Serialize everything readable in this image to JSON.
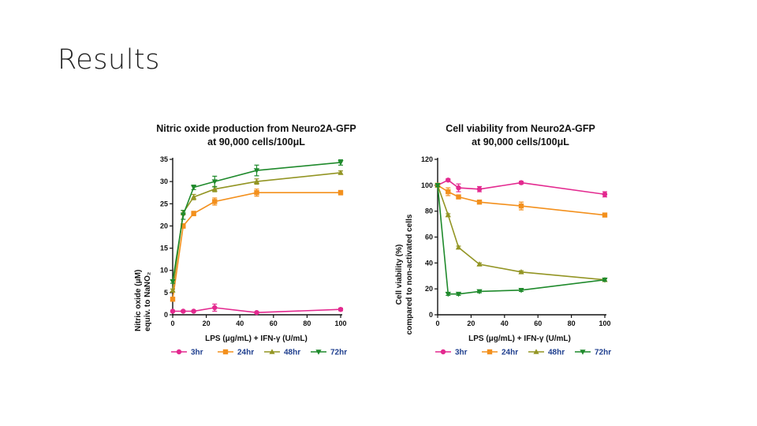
{
  "slide": {
    "title": "Results"
  },
  "colors": {
    "3hr": "#e3298f",
    "24hr": "#f3901d",
    "48hr": "#939524",
    "72hr": "#1f8a2c",
    "axis": "#111111",
    "legend_text": "#1f3f8f"
  },
  "chart_data": [
    {
      "type": "line",
      "title": [
        "Nitric oxide production from Neuro2A-GFP",
        "at 90,000 cells/100μL"
      ],
      "xlabel": "LPS (μg/mL) + IFN-γ (U/mL)",
      "ylabel": [
        "Nitric oxide (μM)",
        "equiv. to NaNO₂"
      ],
      "xlim": [
        0,
        100
      ],
      "ylim": [
        0,
        35
      ],
      "xticks": [
        0,
        20,
        40,
        60,
        80,
        100
      ],
      "yticks": [
        0,
        5,
        10,
        15,
        20,
        25,
        30,
        35
      ],
      "x": [
        0,
        6.25,
        12.5,
        25,
        50,
        100
      ],
      "series": [
        {
          "name": "3hr",
          "marker": "circle",
          "values": [
            0.8,
            0.8,
            0.8,
            1.6,
            0.5,
            1.2
          ],
          "err": [
            0.2,
            0.2,
            0.2,
            0.8,
            0.2,
            0.3
          ]
        },
        {
          "name": "24hr",
          "marker": "square",
          "values": [
            3.5,
            20.0,
            22.8,
            25.5,
            27.5,
            27.5
          ],
          "err": [
            0.3,
            0.5,
            0.5,
            0.8,
            0.8,
            0.5
          ]
        },
        {
          "name": "48hr",
          "marker": "triangle-up",
          "values": [
            5.5,
            23.0,
            26.5,
            28.3,
            30.0,
            32.0
          ],
          "err": [
            0.3,
            0.5,
            0.6,
            0.6,
            0.6,
            0.4
          ]
        },
        {
          "name": "72hr",
          "marker": "triangle-down",
          "values": [
            7.5,
            22.5,
            28.7,
            30.0,
            32.5,
            34.3
          ],
          "err": [
            0.4,
            1.0,
            0.5,
            1.2,
            1.2,
            0.6
          ]
        }
      ]
    },
    {
      "type": "line",
      "title": [
        "Cell viability from Neuro2A-GFP",
        "at 90,000 cells/100μL"
      ],
      "xlabel": "LPS (μg/mL) + IFN-γ (U/mL)",
      "ylabel": [
        "Cell viability (%)",
        "compared to non-activated cells"
      ],
      "xlim": [
        0,
        100
      ],
      "ylim": [
        0,
        120
      ],
      "xticks": [
        0,
        20,
        40,
        60,
        80,
        100
      ],
      "yticks": [
        0,
        20,
        40,
        60,
        80,
        100,
        120
      ],
      "x": [
        0,
        6.25,
        12.5,
        25,
        50,
        100
      ],
      "series": [
        {
          "name": "3hr",
          "marker": "circle",
          "values": [
            100,
            104,
            98,
            97,
            102,
            93
          ],
          "err": [
            1,
            1,
            3,
            2,
            1,
            2
          ]
        },
        {
          "name": "24hr",
          "marker": "square",
          "values": [
            100,
            95,
            91,
            87,
            84,
            77
          ],
          "err": [
            1,
            3,
            1,
            1,
            3,
            1
          ]
        },
        {
          "name": "48hr",
          "marker": "triangle-up",
          "values": [
            100,
            77,
            52,
            39,
            33,
            27
          ],
          "err": [
            1,
            1,
            1,
            1,
            1,
            1
          ]
        },
        {
          "name": "72hr",
          "marker": "triangle-down",
          "values": [
            100,
            16,
            16,
            18,
            19,
            27
          ],
          "err": [
            1,
            1,
            1,
            1,
            1,
            1
          ]
        }
      ]
    }
  ]
}
